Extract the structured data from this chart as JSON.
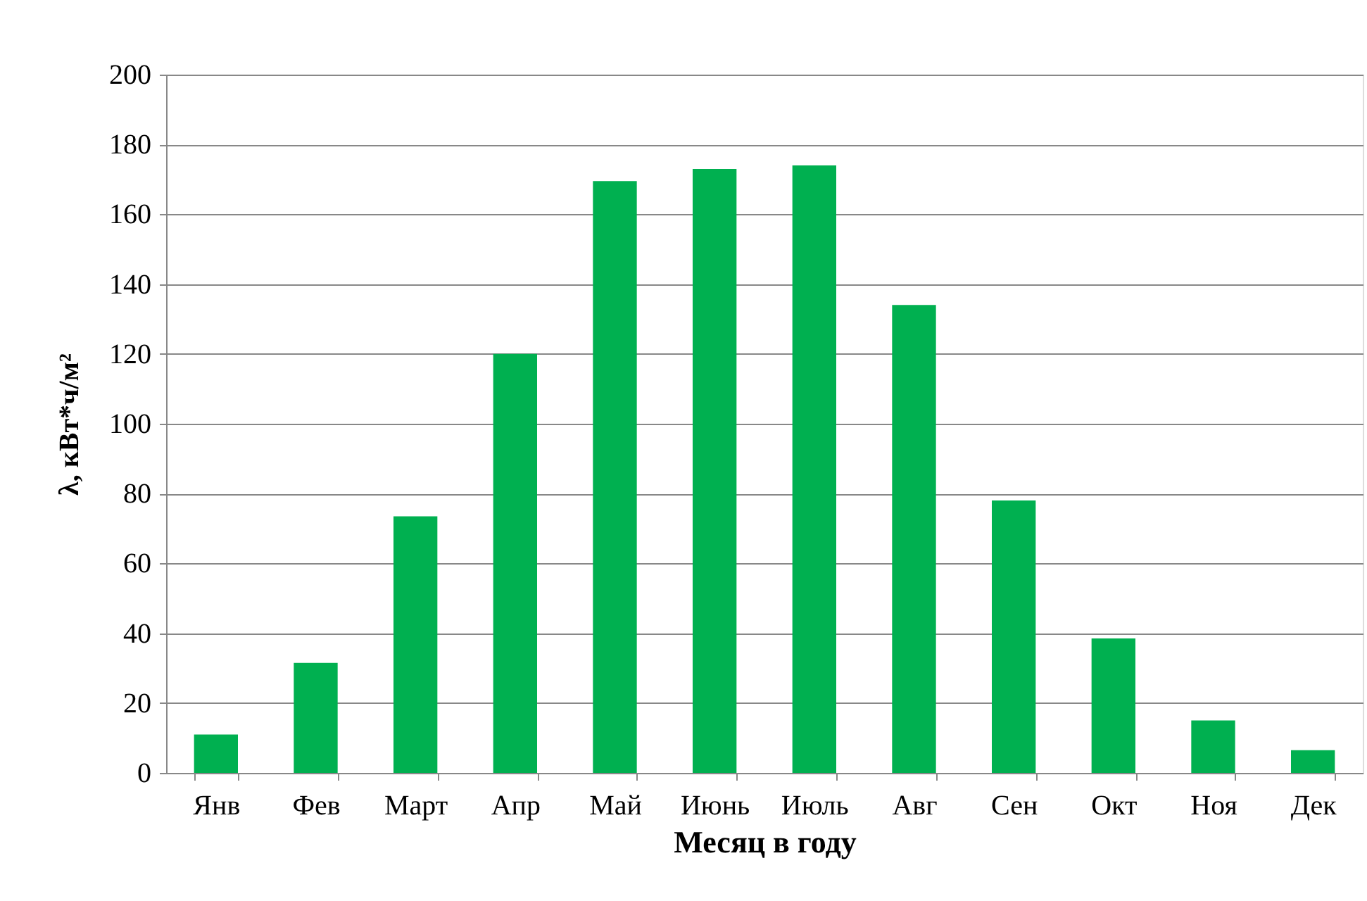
{
  "chart_data": {
    "type": "bar",
    "categories": [
      "Янв",
      "Фев",
      "Март",
      "Апр",
      "Май",
      "Июнь",
      "Июль",
      "Авг",
      "Сен",
      "Окт",
      "Ноя",
      "Дек"
    ],
    "values": [
      11,
      31.5,
      73.5,
      120,
      169.5,
      173,
      174,
      134,
      78,
      38.5,
      15,
      6.5
    ],
    "color": "#00b050",
    "xlabel": "Месяц в году",
    "ylabel": "λ, кВт*ч/м²",
    "ylim": [
      0,
      200
    ],
    "yticks": [
      0,
      20,
      40,
      60,
      80,
      100,
      120,
      140,
      160,
      180,
      200
    ],
    "grid": "y"
  }
}
